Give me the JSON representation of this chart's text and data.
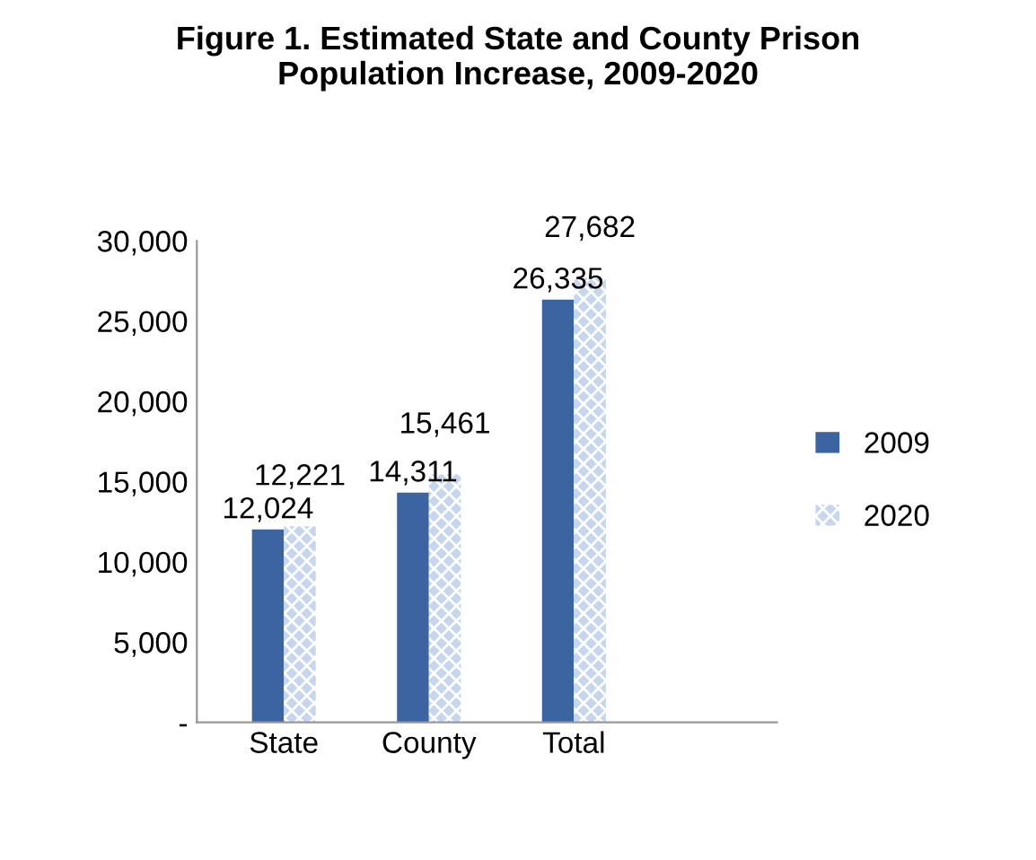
{
  "chart_data": {
    "type": "bar",
    "title": "Figure 1. Estimated State and County Prison\nPopulation Increase, 2009-2020",
    "categories": [
      "State",
      "County",
      "Total"
    ],
    "series": [
      {
        "name": "2009",
        "color": "#3c64a0",
        "values": [
          12024,
          14311,
          26335
        ],
        "value_labels": [
          "12,024",
          "14,311",
          "26,335"
        ]
      },
      {
        "name": "2020",
        "color": "#c6d6ee",
        "values": [
          12221,
          15461,
          27682
        ],
        "value_labels": [
          "12,221",
          "15,461",
          "27,682"
        ]
      }
    ],
    "ylim": [
      0,
      30000
    ],
    "yticks": [
      {
        "value": 0,
        "label": "-"
      },
      {
        "value": 5000,
        "label": "5,000"
      },
      {
        "value": 10000,
        "label": "10,000"
      },
      {
        "value": 15000,
        "label": "15,000"
      },
      {
        "value": 20000,
        "label": "20,000"
      },
      {
        "value": 25000,
        "label": "25,000"
      },
      {
        "value": 30000,
        "label": "30,000"
      }
    ],
    "grid": false,
    "legend": "right"
  }
}
